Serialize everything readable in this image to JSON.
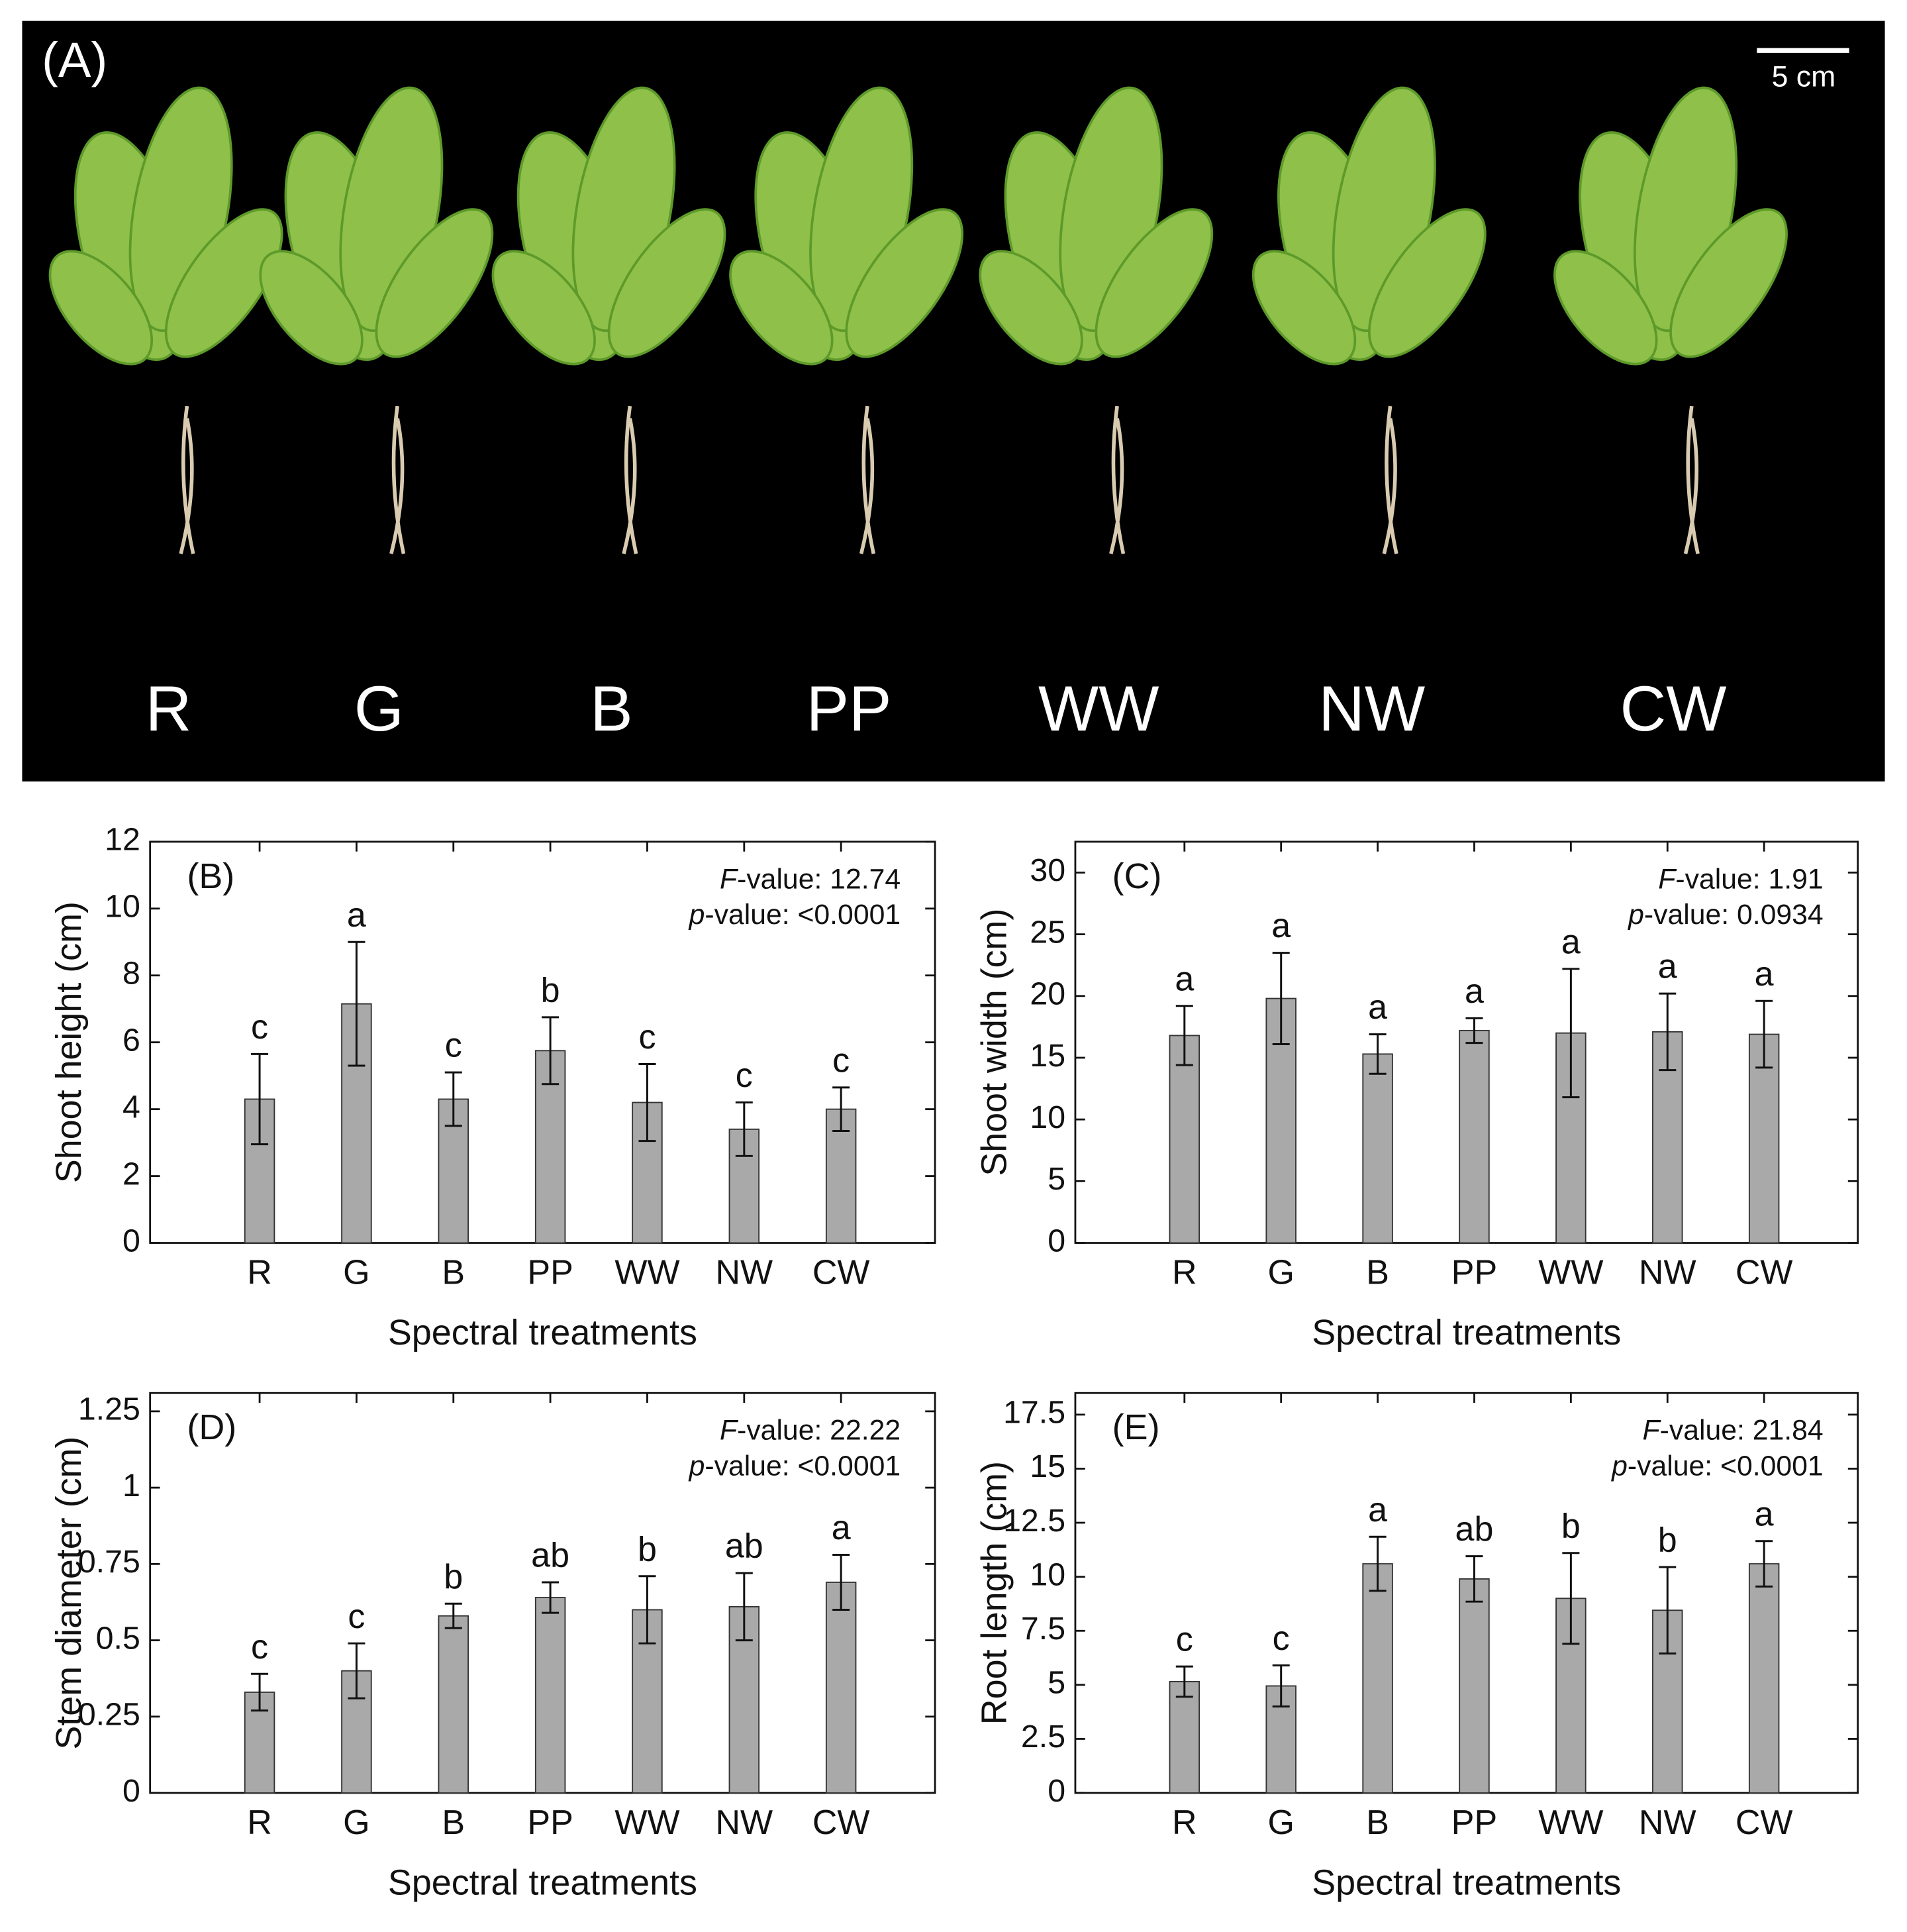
{
  "photo_panel": {
    "label": "(A)",
    "scale_bar": "5 cm",
    "labels": [
      "R",
      "G",
      "B",
      "PP",
      "WW",
      "NW",
      "CW"
    ]
  },
  "chart_data": [
    {
      "type": "bar",
      "panel_label": "(B)",
      "ylabel": "Shoot height (cm)",
      "xlabel": "Spectral treatments",
      "annotations": [
        "F-value: 12.74",
        "p-value: <0.0001"
      ],
      "categories": [
        "R",
        "G",
        "B",
        "PP",
        "WW",
        "NW",
        "CW"
      ],
      "values": [
        4.3,
        7.15,
        4.3,
        5.75,
        4.2,
        3.4,
        4.0
      ],
      "errors": [
        1.35,
        1.85,
        0.8,
        1.0,
        1.15,
        0.8,
        0.65
      ],
      "letters": [
        "c",
        "a",
        "c",
        "b",
        "c",
        "c",
        "c"
      ],
      "color": "#a9a9a9",
      "ylim": [
        0,
        12
      ],
      "yticks": [
        0,
        2,
        4,
        6,
        8,
        10,
        12
      ]
    },
    {
      "type": "bar",
      "panel_label": "(C)",
      "ylabel": "Shoot width (cm)",
      "xlabel": "Spectral treatments",
      "annotations": [
        "F-value: 1.91",
        "p-value: 0.0934"
      ],
      "categories": [
        "R",
        "G",
        "B",
        "PP",
        "WW",
        "NW",
        "CW"
      ],
      "values": [
        16.8,
        19.8,
        15.3,
        17.2,
        17.0,
        17.1,
        16.9
      ],
      "errors": [
        2.4,
        3.7,
        1.6,
        1.0,
        5.2,
        3.1,
        2.7
      ],
      "letters": [
        "a",
        "a",
        "a",
        "a",
        "a",
        "a",
        "a"
      ],
      "color": "#a9a9a9",
      "ylim": [
        0,
        32.5
      ],
      "yticks": [
        0,
        5,
        10,
        15,
        20,
        25,
        30
      ]
    },
    {
      "type": "bar",
      "panel_label": "(D)",
      "ylabel": "Stem diameter (cm)",
      "xlabel": "Spectral treatments",
      "annotations": [
        "F-value: 22.22",
        "p-value: <0.0001"
      ],
      "categories": [
        "R",
        "G",
        "B",
        "PP",
        "WW",
        "NW",
        "CW"
      ],
      "values": [
        0.33,
        0.4,
        0.58,
        0.64,
        0.6,
        0.61,
        0.69
      ],
      "errors": [
        0.06,
        0.09,
        0.04,
        0.05,
        0.11,
        0.11,
        0.09
      ],
      "letters": [
        "c",
        "c",
        "b",
        "ab",
        "b",
        "ab",
        "a"
      ],
      "color": "#a9a9a9",
      "ylim": [
        0,
        1.31
      ],
      "yticks": [
        0,
        0.25,
        0.5,
        0.75,
        1,
        1.25
      ]
    },
    {
      "type": "bar",
      "panel_label": "(E)",
      "ylabel": "Root length (cm)",
      "xlabel": "Spectral treatments",
      "annotations": [
        "F-value: 21.84",
        "p-value: <0.0001"
      ],
      "categories": [
        "R",
        "G",
        "B",
        "PP",
        "WW",
        "NW",
        "CW"
      ],
      "values": [
        5.15,
        4.95,
        10.6,
        9.9,
        9.0,
        8.45,
        10.6
      ],
      "errors": [
        0.7,
        0.95,
        1.25,
        1.05,
        2.1,
        2.0,
        1.05
      ],
      "letters": [
        "c",
        "c",
        "a",
        "ab",
        "b",
        "b",
        "a"
      ],
      "color": "#a9a9a9",
      "ylim": [
        0,
        18.5
      ],
      "yticks": [
        0,
        2.5,
        5,
        7.5,
        10,
        12.5,
        15,
        17.5
      ]
    }
  ]
}
